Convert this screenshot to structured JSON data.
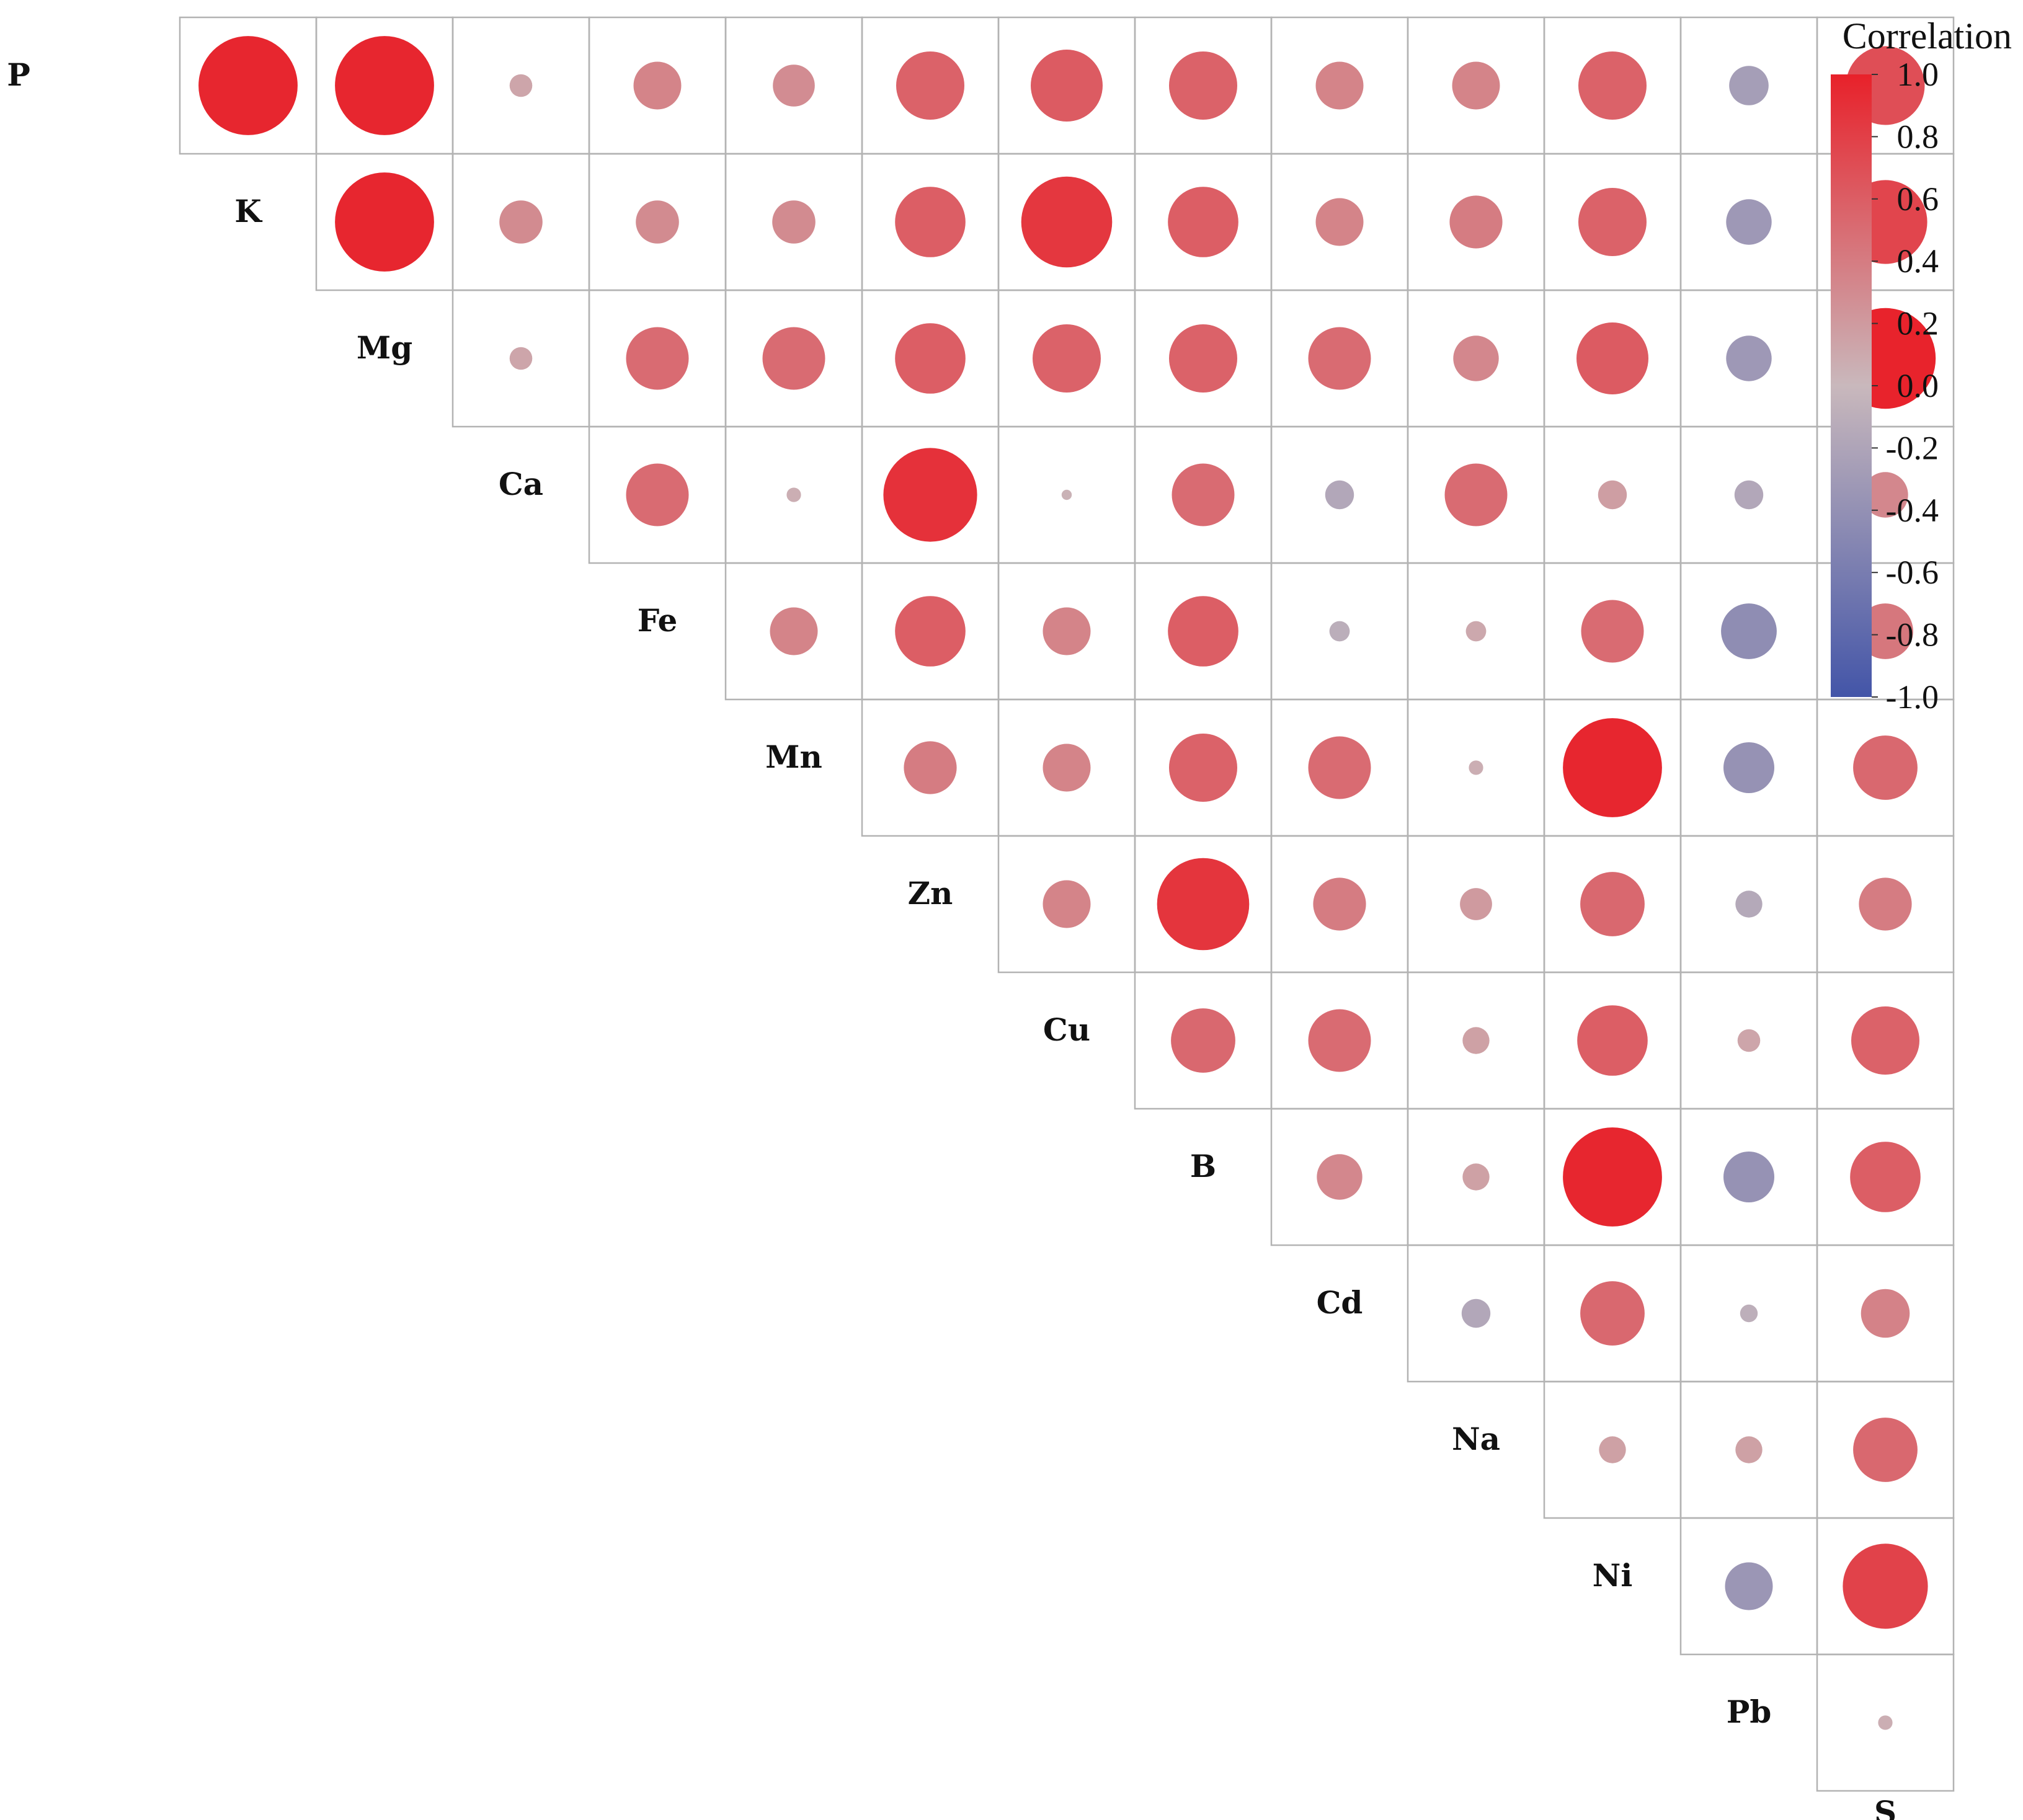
{
  "chart_data": {
    "type": "heatmap",
    "style": "correlogram-circles-upper-triangle",
    "variables": [
      "P",
      "K",
      "Mg",
      "Ca",
      "Fe",
      "Mn",
      "Zn",
      "Cu",
      "B",
      "Cd",
      "Na",
      "Ni",
      "Pb",
      "S"
    ],
    "legend": {
      "title": "Correlation",
      "ticks": [
        "1.0",
        "0.8",
        "0.6",
        "0.4",
        "0.2",
        "0.0",
        "-0.2",
        "-0.4",
        "-0.6",
        "-0.8",
        "-1.0"
      ],
      "range": [
        -1.0,
        1.0
      ],
      "placement": "top-right"
    },
    "colors": {
      "positive_max": "#e8212a",
      "zero": "#c9b8bc",
      "negative_max": "#4355a8",
      "grid": "#b3b3b3"
    },
    "rows": [
      {
        "name": "P",
        "values": [
          0.95,
          0.95,
          0.05,
          0.22,
          0.17,
          0.45,
          0.5,
          0.45,
          0.22,
          0.22,
          0.45,
          -0.15,
          0.6
        ]
      },
      {
        "name": "K",
        "values": [
          0.95,
          0.18,
          0.18,
          0.18,
          0.48,
          0.8,
          0.48,
          0.22,
          0.27,
          0.45,
          -0.2,
          0.68
        ]
      },
      {
        "name": "Mg",
        "values": [
          0.05,
          0.38,
          0.38,
          0.48,
          0.45,
          0.45,
          0.38,
          0.2,
          0.5,
          -0.2,
          0.98
        ]
      },
      {
        "name": "Ca",
        "values": [
          0.38,
          0.02,
          0.85,
          0.01,
          0.38,
          -0.08,
          0.38,
          0.08,
          -0.08,
          0.2
        ]
      },
      {
        "name": "Fe",
        "values": [
          0.22,
          0.48,
          0.22,
          0.48,
          -0.04,
          0.04,
          0.38,
          -0.3,
          0.3
        ]
      },
      {
        "name": "Mn",
        "values": [
          0.27,
          0.22,
          0.45,
          0.38,
          0.02,
          0.95,
          -0.25,
          0.4
        ]
      },
      {
        "name": "Zn",
        "values": [
          0.22,
          0.82,
          0.27,
          0.1,
          0.4,
          -0.07,
          0.27
        ]
      },
      {
        "name": "Cu",
        "values": [
          0.4,
          0.38,
          0.07,
          0.48,
          0.05,
          0.45
        ]
      },
      {
        "name": "B",
        "values": [
          0.2,
          0.07,
          0.95,
          -0.25,
          0.48
        ]
      },
      {
        "name": "Cd",
        "values": [
          -0.08,
          0.4,
          -0.03,
          0.23
        ]
      },
      {
        "name": "Na",
        "values": [
          0.07,
          0.07,
          0.4
        ]
      },
      {
        "name": "Ni",
        "values": [
          -0.22,
          0.7
        ]
      },
      {
        "name": "Pb",
        "values": [
          0.02
        ]
      }
    ]
  }
}
